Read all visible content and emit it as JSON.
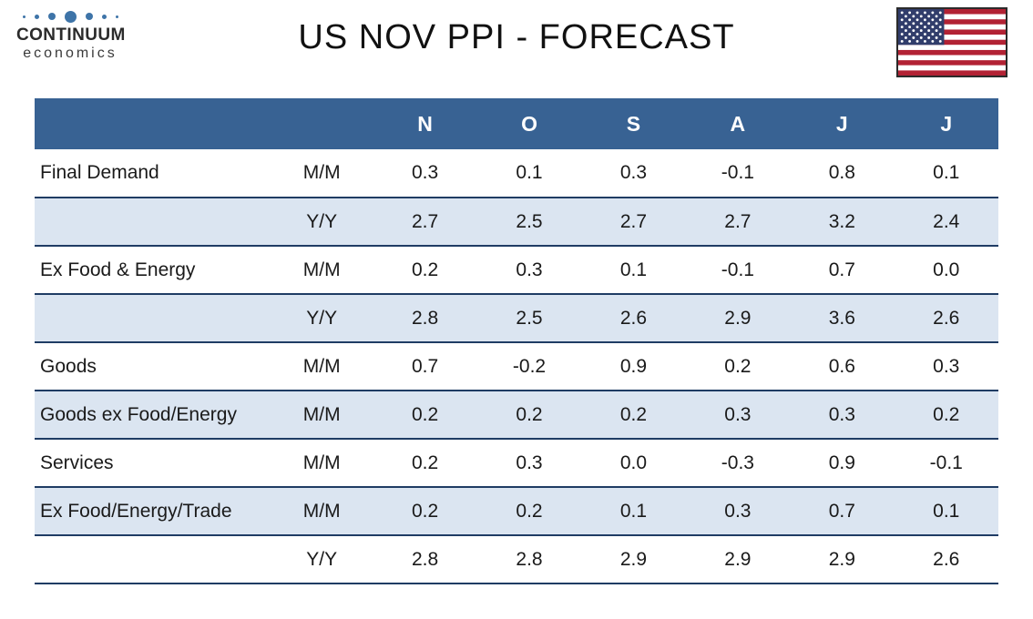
{
  "logo": {
    "brand": "CONTINUUM",
    "sub_brand": "economics",
    "dot_color": "#3e74a8"
  },
  "title": "US NOV PPI - FORECAST",
  "flag": {
    "icon": "us-flag",
    "stripe_red": "#b22234",
    "canton_blue": "#313d6b",
    "border": "#2b2b2b"
  },
  "chart_data": {
    "type": "table",
    "title": "US NOV PPI - FORECAST",
    "columns": [
      "",
      "",
      "N",
      "O",
      "S",
      "A",
      "J",
      "J"
    ],
    "rows": [
      {
        "label": "Final Demand",
        "period": "M/M",
        "values": [
          "0.3",
          "0.1",
          "0.3",
          "-0.1",
          "0.8",
          "0.1"
        ],
        "shaded": false
      },
      {
        "label": "",
        "period": "Y/Y",
        "values": [
          "2.7",
          "2.5",
          "2.7",
          "2.7",
          "3.2",
          "2.4"
        ],
        "shaded": true
      },
      {
        "label": "Ex Food & Energy",
        "period": "M/M",
        "values": [
          "0.2",
          "0.3",
          "0.1",
          "-0.1",
          "0.7",
          "0.0"
        ],
        "shaded": false
      },
      {
        "label": "",
        "period": "Y/Y",
        "values": [
          "2.8",
          "2.5",
          "2.6",
          "2.9",
          "3.6",
          "2.6"
        ],
        "shaded": true
      },
      {
        "label": "Goods",
        "period": "M/M",
        "values": [
          "0.7",
          "-0.2",
          "0.9",
          "0.2",
          "0.6",
          "0.3"
        ],
        "shaded": false
      },
      {
        "label": "Goods ex Food/Energy",
        "period": "M/M",
        "values": [
          "0.2",
          "0.2",
          "0.2",
          "0.3",
          "0.3",
          "0.2"
        ],
        "shaded": true
      },
      {
        "label": "Services",
        "period": "M/M",
        "values": [
          "0.2",
          "0.3",
          "0.0",
          "-0.3",
          "0.9",
          "-0.1"
        ],
        "shaded": false
      },
      {
        "label": "Ex Food/Energy/Trade",
        "period": "M/M",
        "values": [
          "0.2",
          "0.2",
          "0.1",
          "0.3",
          "0.7",
          "0.1"
        ],
        "shaded": true
      },
      {
        "label": "",
        "period": "Y/Y",
        "values": [
          "2.8",
          "2.8",
          "2.9",
          "2.9",
          "2.9",
          "2.6"
        ],
        "shaded": false
      }
    ],
    "colors": {
      "header_bg": "#386293",
      "header_text": "#ffffff",
      "shaded_row_bg": "#dbe5f1",
      "row_border": "#1f3c64",
      "body_text": "#1a1a1a"
    },
    "grid": "horizontal-row-borders",
    "legend_position": "none"
  }
}
